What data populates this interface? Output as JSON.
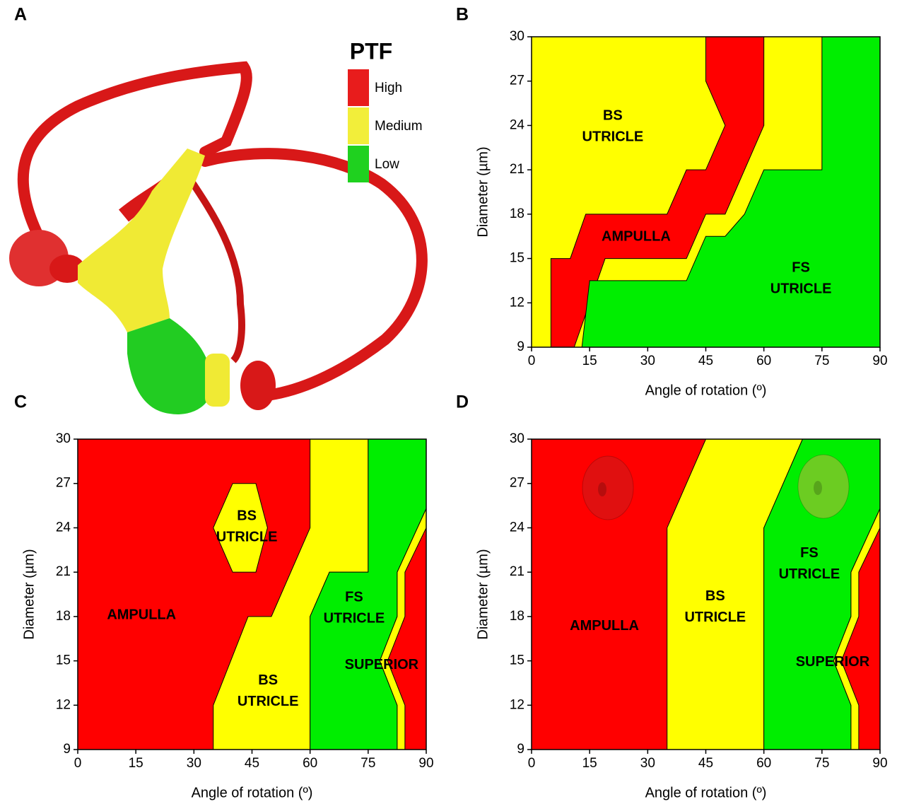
{
  "panel_a": {
    "label": "A",
    "legend_title": "PTF",
    "legend": [
      {
        "name": "High",
        "color": "#e81c1c"
      },
      {
        "name": "Medium",
        "color": "#f2ee3a"
      },
      {
        "name": "Low",
        "color": "#1fd11f"
      }
    ]
  },
  "chart_data": [
    {
      "type": "region",
      "panel": "B",
      "xlabel": "Angle of rotation (º)",
      "ylabel": "Diameter (µm)",
      "xlim": [
        0,
        90
      ],
      "ylim": [
        9,
        30
      ],
      "xticks": [
        0,
        15,
        30,
        45,
        60,
        75,
        90
      ],
      "yticks": [
        9,
        12,
        15,
        18,
        21,
        24,
        27,
        30
      ],
      "background": "#ffff00",
      "regions": [
        {
          "color": "#ff0000",
          "x": [
            5,
            5,
            10,
            14,
            35,
            40,
            45,
            50,
            45,
            45,
            60,
            60,
            55,
            50,
            45,
            40,
            19,
            11
          ],
          "y": [
            9,
            15,
            15,
            18,
            18,
            21,
            21,
            24,
            27,
            30,
            30,
            24,
            21,
            18,
            18,
            15,
            15,
            9
          ]
        },
        {
          "color": "#00ee00",
          "x": [
            13,
            15,
            40,
            45,
            50,
            55,
            60,
            75,
            75,
            90,
            90
          ],
          "y": [
            9,
            13.5,
            13.5,
            16.5,
            16.5,
            18,
            21,
            21,
            30,
            30,
            9
          ]
        }
      ],
      "labels": [
        [
          "BS",
          "UTRICLE"
        ],
        [
          "AMPULLA"
        ],
        [
          "FS",
          "UTRICLE"
        ]
      ]
    },
    {
      "type": "region",
      "panel": "C",
      "xlabel": "Angle of rotation (º)",
      "ylabel": "Diameter (µm)",
      "xlim": [
        0,
        90
      ],
      "ylim": [
        9,
        30
      ],
      "xticks": [
        0,
        15,
        30,
        45,
        60,
        75,
        90
      ],
      "yticks": [
        9,
        12,
        15,
        18,
        21,
        24,
        27,
        30
      ],
      "background": "#ff0000",
      "regions": [
        {
          "color": "#ffff00",
          "x": [
            35,
            35,
            44,
            50,
            60,
            60,
            75,
            75,
            65,
            60,
            60
          ],
          "y": [
            9,
            12,
            18,
            18,
            24,
            30,
            30,
            21,
            21,
            18,
            9
          ]
        },
        {
          "color": "#00ee00",
          "x": [
            60,
            60,
            65,
            75,
            75,
            90,
            90,
            82.5,
            82.5,
            78,
            82.5,
            82.5
          ],
          "y": [
            9,
            18,
            21,
            21,
            30,
            30,
            25.3,
            21,
            18,
            15,
            12,
            9
          ]
        },
        {
          "color": "#ffff00",
          "x": [
            82.5,
            82.5,
            78,
            82.5,
            82.5,
            90,
            90,
            84.5,
            84.5,
            80,
            84.5,
            84.5
          ],
          "y": [
            9,
            12,
            15,
            18,
            21,
            25.3,
            24,
            21,
            18,
            15,
            12,
            9
          ]
        },
        {
          "color": "#ffff00",
          "x": [
            40,
            46,
            49,
            46,
            40,
            35
          ],
          "y": [
            27,
            27,
            24,
            21,
            21,
            24
          ]
        }
      ],
      "labels": [
        [
          "BS",
          "UTRICLE"
        ],
        [
          "AMPULLA"
        ],
        [
          "BS",
          "UTRICLE"
        ],
        [
          "FS",
          "UTRICLE"
        ],
        [
          "SUPERIOR"
        ]
      ]
    },
    {
      "type": "region",
      "panel": "D",
      "xlabel": "Angle of rotation (º)",
      "ylabel": "Diameter (µm)",
      "xlim": [
        0,
        90
      ],
      "ylim": [
        9,
        30
      ],
      "xticks": [
        0,
        15,
        30,
        45,
        60,
        75,
        90
      ],
      "yticks": [
        9,
        12,
        15,
        18,
        21,
        24,
        27,
        30
      ],
      "background": "#ff0000",
      "regions": [
        {
          "color": "#ffff00",
          "x": [
            35,
            35,
            45,
            70,
            60,
            60
          ],
          "y": [
            9,
            24,
            30,
            30,
            24,
            9
          ]
        },
        {
          "color": "#00ee00",
          "x": [
            60,
            60,
            70,
            90,
            90,
            82.5,
            82.5,
            78,
            82.5,
            82.5
          ],
          "y": [
            9,
            24,
            30,
            30,
            25.3,
            21,
            18,
            15,
            12,
            9
          ]
        },
        {
          "color": "#ffff00",
          "x": [
            82.5,
            82.5,
            78,
            82.5,
            82.5,
            90,
            90,
            84.5,
            84.5,
            80,
            84.5,
            84.5
          ],
          "y": [
            9,
            12,
            15,
            18,
            21,
            25.3,
            24,
            21,
            18,
            15,
            12,
            9
          ]
        }
      ],
      "labels": [
        [
          "AMPULLA"
        ],
        [
          "BS",
          "UTRICLE"
        ],
        [
          "FS",
          "UTRICLE"
        ],
        [
          "SUPERIOR"
        ]
      ]
    }
  ]
}
